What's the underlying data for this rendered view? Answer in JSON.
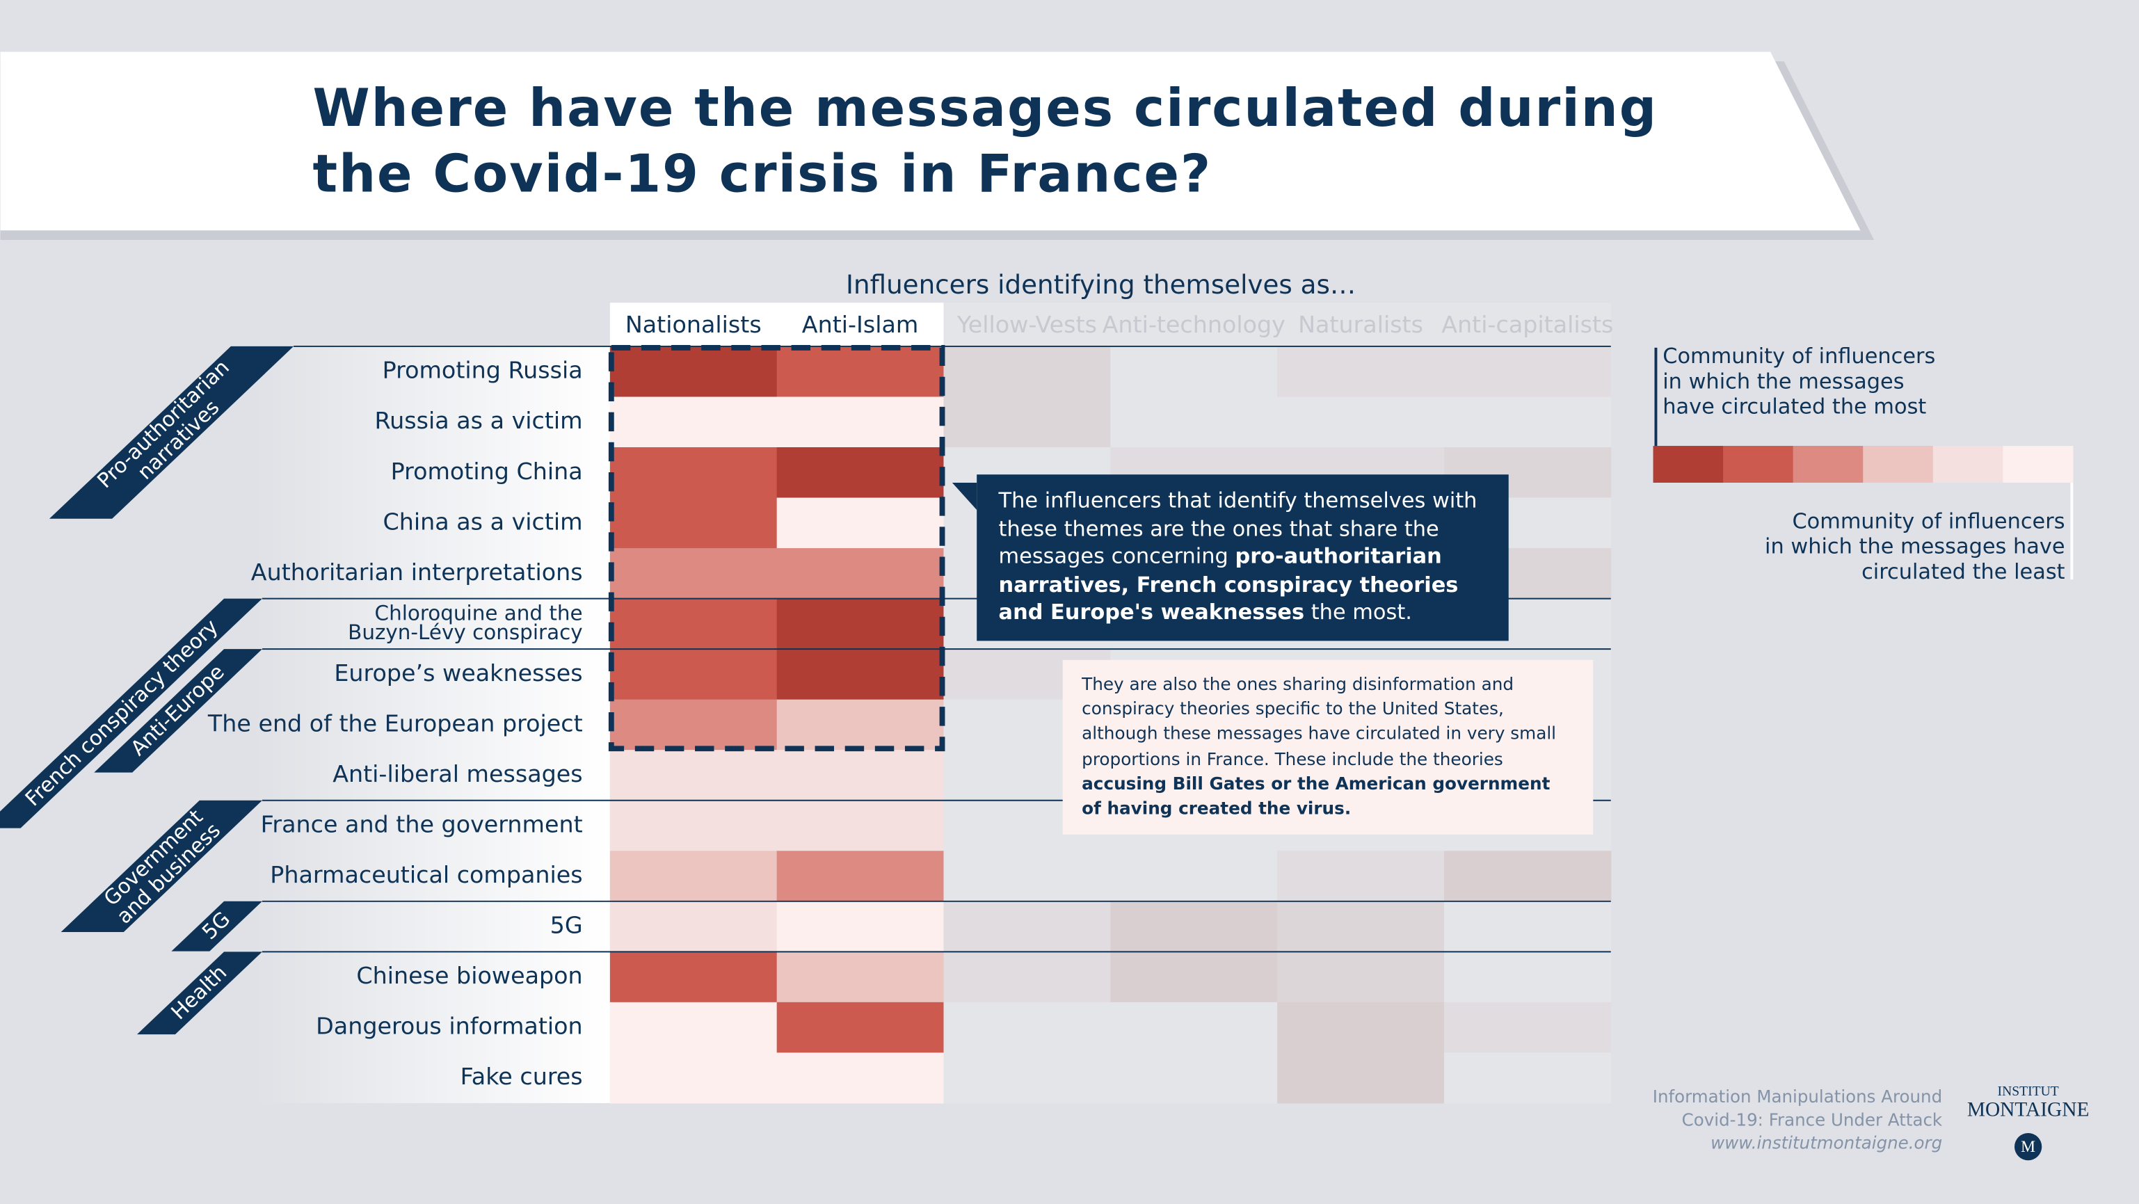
{
  "chart_data": {
    "type": "heatmap",
    "title_lines": [
      "Where have the messages circulated during",
      "the Covid-19 crisis in France?"
    ],
    "column_header": "Influencers identifying themselves as…",
    "columns": [
      "Nationalists",
      "Anti-Islam",
      "Yellow-Vests",
      "Anti-technology",
      "Naturalists",
      "Anti-capitalists"
    ],
    "rows": [
      "Promoting Russia",
      "Russia as a victim",
      "Promoting China",
      "China as a victim",
      "Authoritarian interpretations",
      [
        "Chloroquine and the",
        "Buzyn-Lévy conspiracy"
      ],
      "Europe’s weaknesses",
      "The end of the European project",
      "Anti-liberal messages",
      "France and the government",
      "Pharmaceutical companies",
      "5G",
      "Chinese bioweapon",
      "Dangerous information",
      "Fake cures"
    ],
    "row_groups": [
      {
        "label": [
          "Pro-authoritarian",
          "narratives"
        ],
        "rows": [
          0,
          4
        ]
      },
      {
        "label": [
          "French conspiracy theory"
        ],
        "rows": [
          5,
          5
        ]
      },
      {
        "label": [
          "Anti-Europe"
        ],
        "rows": [
          6,
          8
        ]
      },
      {
        "label": [
          "Government",
          "and business"
        ],
        "rows": [
          9,
          10
        ]
      },
      {
        "label": [
          "5G"
        ],
        "rows": [
          11,
          11
        ]
      },
      {
        "label": [
          "Health"
        ],
        "rows": [
          12,
          14
        ]
      }
    ],
    "values": [
      [
        1,
        2,
        4,
        6,
        5,
        5
      ],
      [
        6,
        6,
        4,
        6,
        6,
        6
      ],
      [
        2,
        1,
        6,
        5,
        5,
        4
      ],
      [
        2,
        6,
        6,
        6,
        6,
        6
      ],
      [
        3,
        3,
        6,
        6,
        6,
        4
      ],
      [
        2,
        1,
        6,
        6,
        6,
        6
      ],
      [
        2,
        1,
        5,
        6,
        6,
        6
      ],
      [
        3,
        4,
        6,
        6,
        6,
        6
      ],
      [
        5,
        5,
        6,
        6,
        6,
        6
      ],
      [
        5,
        5,
        6,
        6,
        6,
        6
      ],
      [
        4,
        3,
        6,
        6,
        5,
        3
      ],
      [
        5,
        6,
        5,
        3,
        4,
        6
      ],
      [
        2,
        4,
        5,
        3,
        4,
        6
      ],
      [
        6,
        2,
        6,
        6,
        3,
        5
      ],
      [
        6,
        6,
        6,
        6,
        3,
        6
      ]
    ],
    "palette": [
      "#b03e35",
      "#cd5a4f",
      "#dc8a82",
      "#ecc4c0",
      "#f4e0de",
      "#fcefee"
    ],
    "muted_palette": [
      "#cdbfc1",
      "#d3c7ca",
      "#d9cfd1",
      "#ddd6d8",
      "#e1dcdf",
      "#e4e5e9"
    ],
    "highlight_box": {
      "columns": [
        0,
        1
      ],
      "rows": [
        0,
        7
      ]
    },
    "legend": {
      "most": [
        "Community of influencers",
        "in which the messages",
        "have circulated the most"
      ],
      "least": [
        "Community of influencers",
        "in which the messages have",
        "circulated the least"
      ]
    },
    "annotations": [
      {
        "parts": [
          "The influencers that identify themselves with these themes are the ones that share the messages concerning ",
          "pro-authoritarian narratives, French conspiracy theories and Europe's weaknesses",
          " the most."
        ]
      },
      {
        "parts": [
          "They are also the ones sharing disinformation and conspiracy theories specific to the United States, although these messages have circulated in very small proportions in France. These include the theories ",
          "accusing Bill Gates or the American government of having created the virus."
        ]
      }
    ],
    "source": [
      "Information Manipulations Around",
      "Covid-19: France Under Attack",
      "www.institutmontaigne.org"
    ],
    "logo": [
      "INSTITUT",
      "MONTAIGNE",
      "M"
    ]
  }
}
